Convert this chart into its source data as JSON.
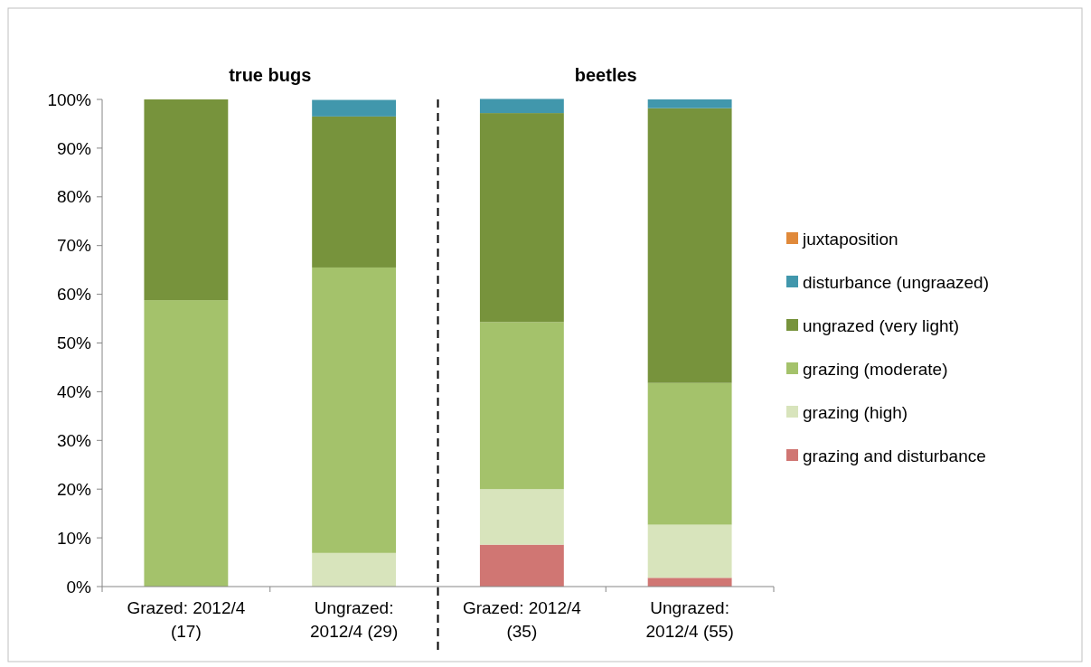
{
  "chart_data": {
    "type": "bar",
    "stacked": true,
    "categories": [
      "Grazed: 2012/4 (17)",
      "Ungrazed: 2012/4 (29)",
      "Grazed: 2012/4 (35)",
      "Ungrazed: 2012/4 (55)"
    ],
    "series": [
      {
        "name": "grazing and disturbance",
        "color": "#d07673",
        "values": [
          0,
          0,
          8.6,
          1.8
        ]
      },
      {
        "name": "grazing (high)",
        "color": "#d8e4bc",
        "values": [
          0,
          6.9,
          11.4,
          10.9
        ]
      },
      {
        "name": "grazing (moderate)",
        "color": "#a4c26b",
        "values": [
          58.8,
          58.6,
          34.3,
          29.1
        ]
      },
      {
        "name": "ungrazed (very light)",
        "color": "#77933c",
        "values": [
          41.2,
          31.0,
          42.9,
          56.4
        ]
      },
      {
        "name": "disturbance (ungraazed)",
        "color": "#4197ac",
        "values": [
          0,
          3.4,
          2.9,
          1.8
        ]
      },
      {
        "name": "juxtaposition",
        "color": "#e0893a",
        "values": [
          0,
          0,
          0,
          0
        ]
      }
    ],
    "ylim": [
      0,
      100
    ],
    "yticks": [
      {
        "value": 0,
        "label": "0%"
      },
      {
        "value": 10,
        "label": "10%"
      },
      {
        "value": 20,
        "label": "20%"
      },
      {
        "value": 30,
        "label": "30%"
      },
      {
        "value": 40,
        "label": "40%"
      },
      {
        "value": 50,
        "label": "50%"
      },
      {
        "value": 60,
        "label": "60%"
      },
      {
        "value": 70,
        "label": "70%"
      },
      {
        "value": 80,
        "label": "80%"
      },
      {
        "value": 90,
        "label": "90%"
      },
      {
        "value": 100,
        "label": "100%"
      }
    ],
    "annotations": [
      "true bugs",
      "beetles"
    ],
    "grid": false,
    "legend": "right"
  }
}
